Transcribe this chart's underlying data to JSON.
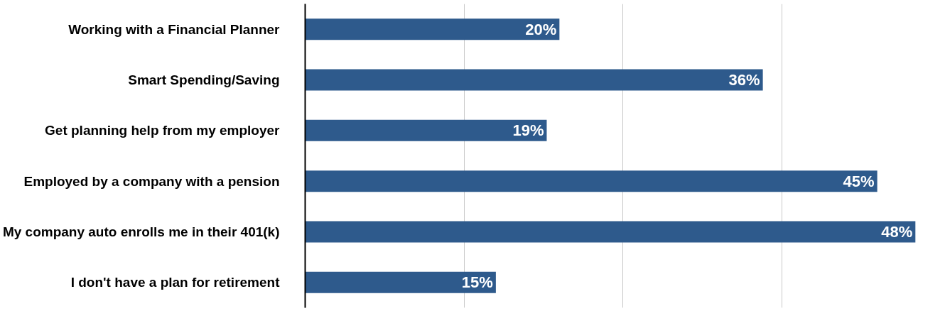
{
  "chart_data": {
    "type": "bar",
    "orientation": "horizontal",
    "categories": [
      "Working with a Financial Planner",
      "Smart Spending/Saving",
      "Get planning help from my employer",
      "Employed by a company with a pension",
      "My company auto enrolls me in their 401(k)",
      "I don't have a plan for retirement"
    ],
    "values": [
      20,
      36,
      19,
      45,
      48,
      15
    ],
    "color": "#2e5a8c",
    "data_labels": true,
    "value_labels": [
      "20%",
      "36%",
      "19%",
      "45%",
      "48%",
      "15%"
    ],
    "xticks": [
      {
        "value": 12.5,
        "label": null
      },
      {
        "value": 25,
        "label": null
      },
      {
        "value": 37.5,
        "label": null
      }
    ],
    "grid": "x",
    "tick_labels": "y"
  }
}
